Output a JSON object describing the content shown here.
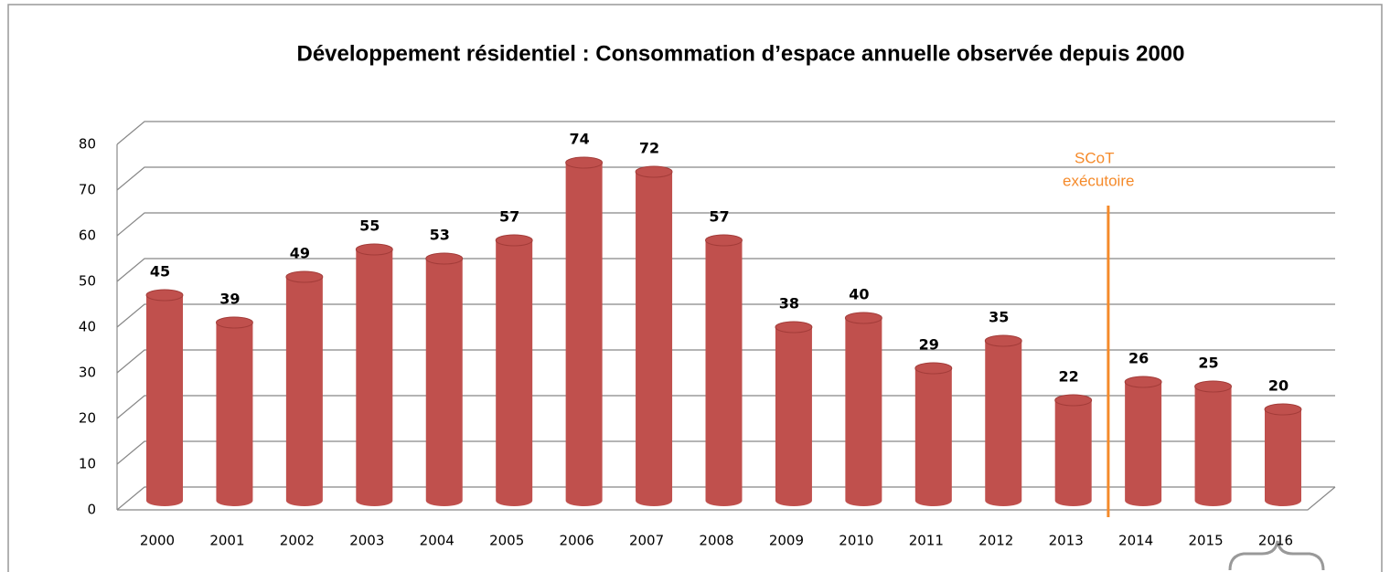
{
  "chart_data": {
    "type": "bar3d",
    "title": "Développement résidentiel : Consommation d’espace annuelle observée depuis 2000",
    "categories": [
      "2000",
      "2001",
      "2002",
      "2003",
      "2004",
      "2005",
      "2006",
      "2007",
      "2008",
      "2009",
      "2010",
      "2011",
      "2012",
      "2013",
      "2014",
      "2015",
      "2016"
    ],
    "values": [
      45,
      39,
      49,
      55,
      53,
      57,
      74,
      72,
      57,
      38,
      40,
      29,
      35,
      22,
      26,
      25,
      20
    ],
    "color": "#c0504d",
    "ylim": [
      0,
      80
    ],
    "yticks": [
      0,
      10,
      20,
      30,
      40,
      50,
      60,
      70,
      80
    ],
    "grid": true,
    "annotation": {
      "lines": [
        "SCoT",
        "exécutoire"
      ],
      "color": "#f58a2a"
    }
  }
}
